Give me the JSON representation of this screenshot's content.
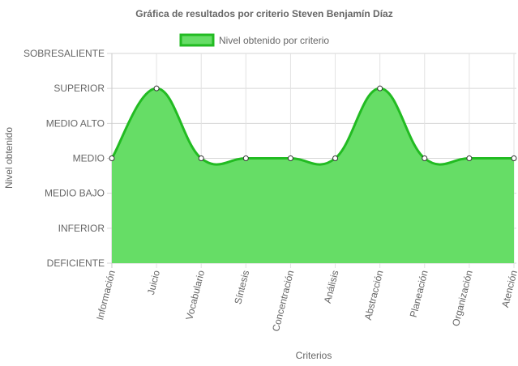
{
  "chart_data": {
    "type": "area",
    "title": "Gráfica de resultados por criterio Steven Benjamín Díaz",
    "xlabel": "Criterios",
    "ylabel": "Nivel obtenido",
    "legend_position": "top",
    "grid": true,
    "y_levels": [
      "DEFICIENTE",
      "INFERIOR",
      "MEDIO BAJO",
      "MEDIO",
      "MEDIO ALTO",
      "SUPERIOR",
      "SOBRESALIENTE"
    ],
    "ylim": [
      0,
      6
    ],
    "categories": [
      "Información",
      "Juicio",
      "Vocabulario",
      "Síntesis",
      "Concentración",
      "Análisis",
      "Abstracción",
      "Planeación",
      "Organización",
      "Atención"
    ],
    "series": [
      {
        "name": "Nivel obtenido por criterio",
        "values": [
          3,
          5,
          3,
          3,
          3,
          3,
          5,
          3,
          3,
          3
        ],
        "fill_color": "#66dd66",
        "line_color": "#22bb22"
      }
    ]
  }
}
